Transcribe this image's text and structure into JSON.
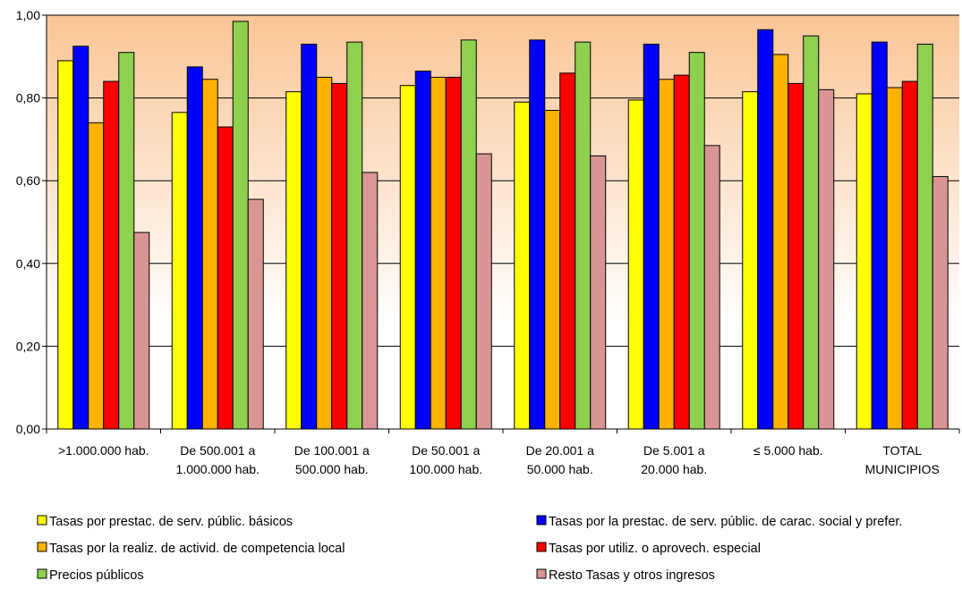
{
  "chart_data": {
    "type": "bar",
    "title": "",
    "xlabel": "",
    "ylabel": "",
    "ylim": [
      0,
      1
    ],
    "yticks": [
      "0,00",
      "0,20",
      "0,40",
      "0,60",
      "0,80",
      "1,00"
    ],
    "grid": true,
    "legend_placement": "bottom",
    "categories": [
      [
        ">1.000.000 hab."
      ],
      [
        "De 500.001 a",
        "1.000.000 hab."
      ],
      [
        "De 100.001 a",
        "500.000 hab."
      ],
      [
        "De 50.001 a",
        "100.000 hab."
      ],
      [
        "De 20.001 a",
        "50.000 hab."
      ],
      [
        "De 5.001 a",
        "20.000 hab."
      ],
      [
        "≤ 5.000 hab."
      ],
      [
        "TOTAL",
        "MUNICIPIOS"
      ]
    ],
    "series": [
      {
        "name": "Tasas por prestac. de serv. públic. básicos",
        "color": "#FFFF00",
        "values": [
          0.89,
          0.765,
          0.815,
          0.83,
          0.79,
          0.795,
          0.815,
          0.81
        ]
      },
      {
        "name": "Tasas por la prestac. de serv. públic. de carac. social y prefer.",
        "color": "#0000FF",
        "values": [
          0.925,
          0.875,
          0.93,
          0.865,
          0.94,
          0.93,
          0.965,
          0.935
        ]
      },
      {
        "name": "Tasas por la realiz. de activid. de competencia local",
        "color": "#FFB300",
        "values": [
          0.74,
          0.845,
          0.85,
          0.85,
          0.77,
          0.845,
          0.905,
          0.825
        ]
      },
      {
        "name": "Tasas por utiliz. o aprovech. especial",
        "color": "#FF0000",
        "values": [
          0.84,
          0.73,
          0.835,
          0.85,
          0.86,
          0.855,
          0.835,
          0.84
        ]
      },
      {
        "name": "Precios públicos",
        "color": "#8FD14F",
        "values": [
          0.91,
          0.985,
          0.935,
          0.94,
          0.935,
          0.91,
          0.95,
          0.93
        ]
      },
      {
        "name": "Resto Tasas y otros ingresos",
        "color": "#D99594",
        "values": [
          0.475,
          0.555,
          0.62,
          0.665,
          0.66,
          0.685,
          0.82,
          0.61
        ]
      }
    ]
  }
}
